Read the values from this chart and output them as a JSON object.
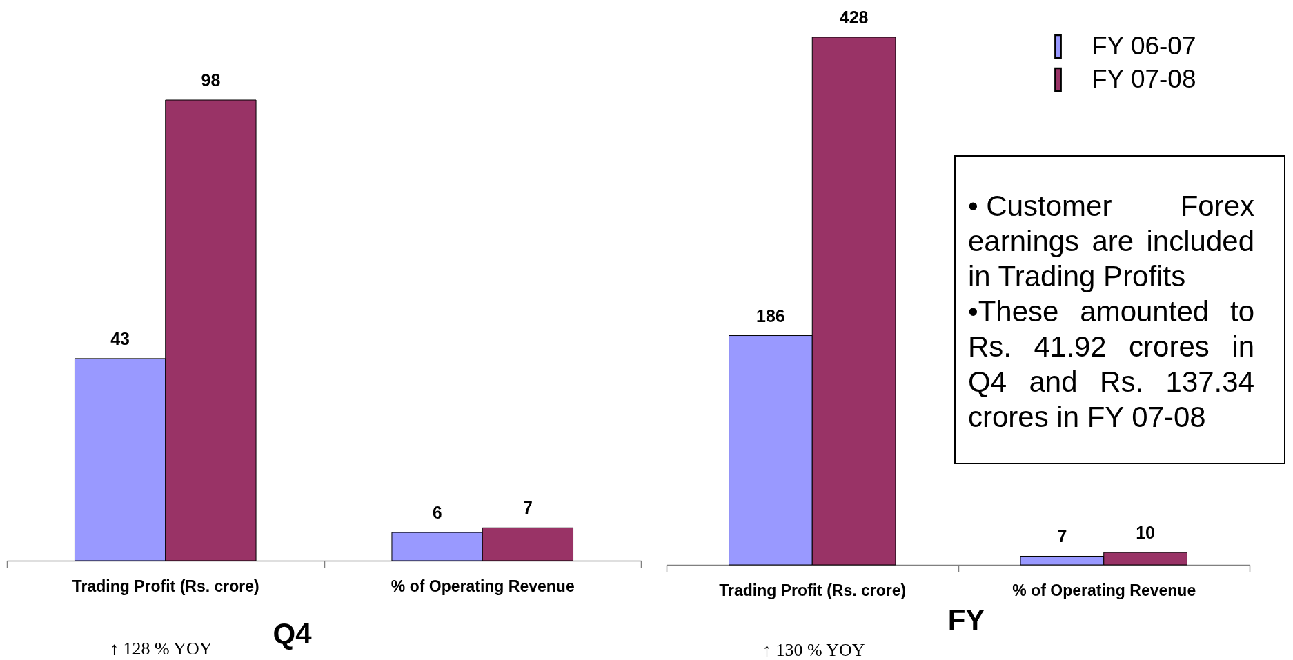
{
  "chart_data": [
    {
      "type": "bar",
      "title": "Q4",
      "categories": [
        "Trading Profit (Rs. crore)",
        "% of Operating Revenue"
      ],
      "series": [
        {
          "color": "#9999ff",
          "values": [
            43,
            6
          ]
        },
        {
          "color": "#993366",
          "values": [
            98,
            7
          ]
        }
      ],
      "data_labels": true,
      "legend": false,
      "annotations": [
        "↑ 128 % YOY"
      ]
    },
    {
      "type": "bar",
      "title": "FY",
      "categories": [
        "Trading Profit (Rs. crore)",
        "% of Operating Revenue"
      ],
      "series": [
        {
          "name": "FY 06-07",
          "color": "#9999ff",
          "values": [
            186,
            7
          ]
        },
        {
          "name": "FY 07-08",
          "color": "#993366",
          "values": [
            428,
            10
          ]
        }
      ],
      "data_labels": true,
      "legend": "top right",
      "annotations": [
        "• Customer Forex earnings are included in Trading Profits",
        "•These amounted to Rs. 41.92 crores in Q4 and Rs. 137.34 crores in FY 07-08",
        "↑ 130 % YOY"
      ]
    }
  ]
}
